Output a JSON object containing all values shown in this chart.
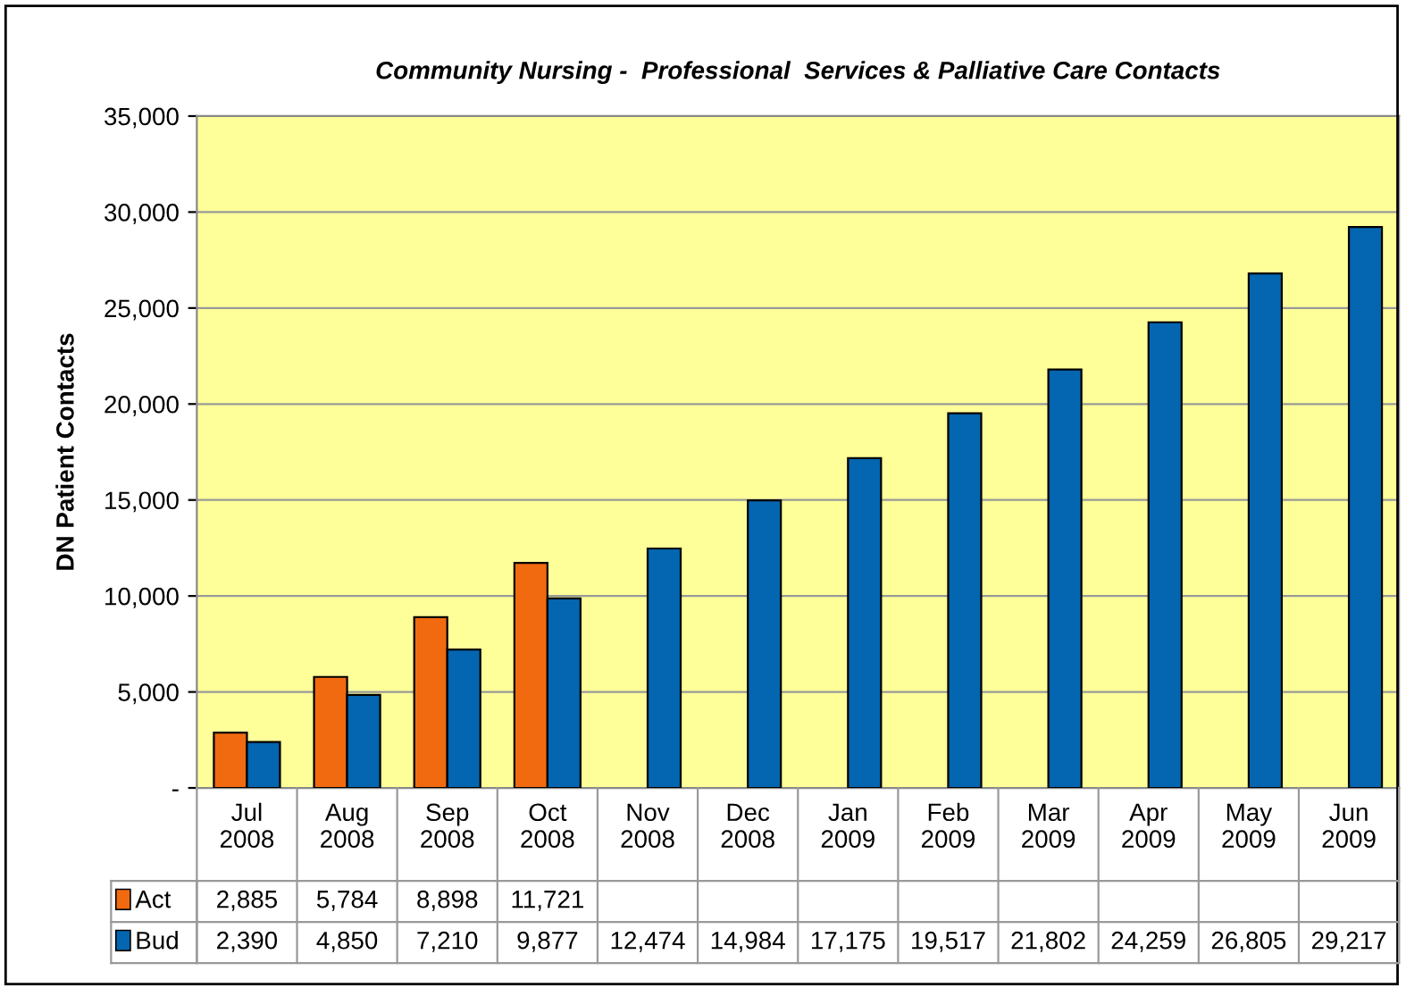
{
  "chart_data": {
    "type": "bar",
    "title": "Community Nursing -  Professional  Services & Palliative Care Contacts",
    "ylabel": "DN Patient Contacts",
    "categories": [
      "Jul\n2008",
      "Aug\n2008",
      "Sep\n2008",
      "Oct\n2008",
      "Nov\n2008",
      "Dec\n2008",
      "Jan\n2009",
      "Feb\n2009",
      "Mar\n2009",
      "Apr\n2009",
      "May\n2009",
      "Jun\n2009"
    ],
    "series": [
      {
        "name": "Act",
        "color": "#f26a10",
        "values": [
          2885,
          5784,
          8898,
          11721,
          null,
          null,
          null,
          null,
          null,
          null,
          null,
          null
        ],
        "value_labels": [
          "2,885",
          "5,784",
          "8,898",
          "11,721",
          null,
          null,
          null,
          null,
          null,
          null,
          null,
          null
        ]
      },
      {
        "name": "Bud",
        "color": "#0465b0",
        "values": [
          2390,
          4850,
          7210,
          9877,
          12474,
          14984,
          17175,
          19517,
          21802,
          24259,
          26805,
          29217
        ],
        "value_labels": [
          "2,390",
          "4,850",
          "7,210",
          "9,877",
          "12,474",
          "14,984",
          "17,175",
          "19,517",
          "21,802",
          "24,259",
          "26,805",
          "29,217"
        ]
      }
    ],
    "ylim": [
      0,
      35000
    ],
    "yticks": [
      {
        "value": 0,
        "label": "-"
      },
      {
        "value": 5000,
        "label": "5,000"
      },
      {
        "value": 10000,
        "label": "10,000"
      },
      {
        "value": 15000,
        "label": "15,000"
      },
      {
        "value": 20000,
        "label": "20,000"
      },
      {
        "value": 25000,
        "label": "25,000"
      },
      {
        "value": 30000,
        "label": "30,000"
      },
      {
        "value": 35000,
        "label": "35,000"
      }
    ],
    "grid": "y",
    "legend": "bottom"
  }
}
